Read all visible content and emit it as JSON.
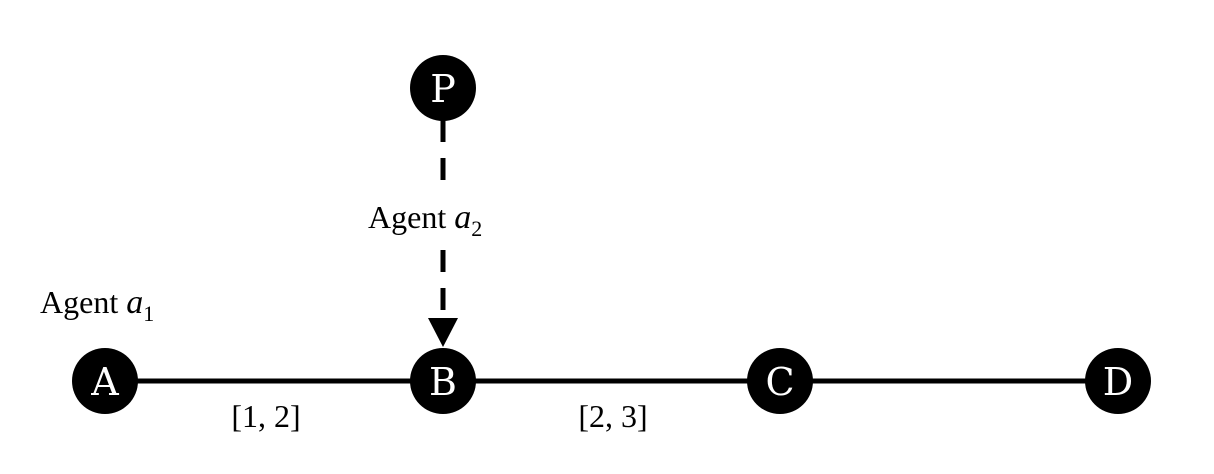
{
  "nodes": {
    "A": "A",
    "B": "B",
    "C": "C",
    "D": "D",
    "P": "P"
  },
  "edges": {
    "ab_interval": "[1, 2]",
    "bc_interval": "[2, 3]"
  },
  "agents": {
    "a1": {
      "prefix": "Agent ",
      "var": "a",
      "sub": "1"
    },
    "a2": {
      "prefix": "Agent ",
      "var": "a",
      "sub": "2"
    }
  },
  "colors": {
    "node_fill": "#000000",
    "node_text": "#ffffff",
    "line": "#000000"
  }
}
